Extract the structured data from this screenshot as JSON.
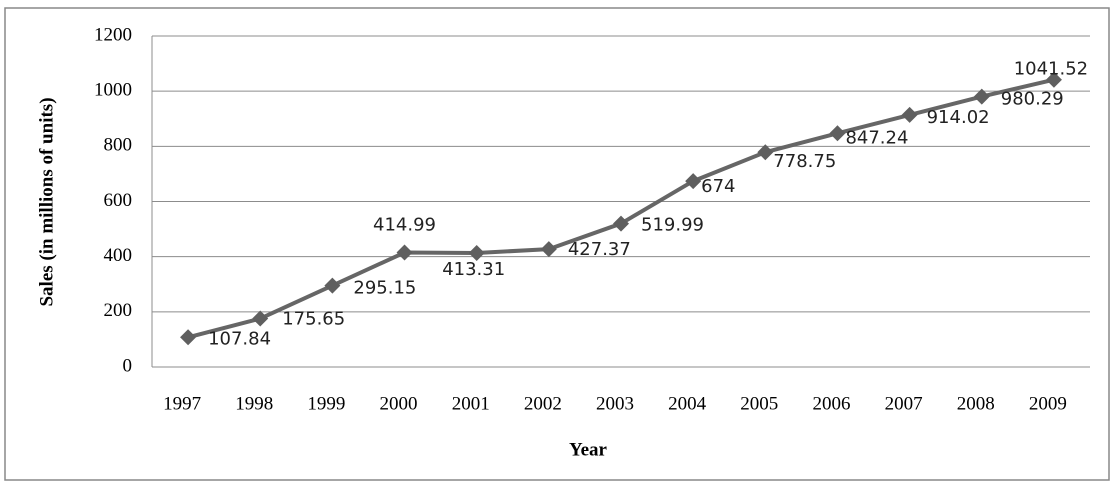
{
  "chart_data": {
    "type": "line",
    "xlabel": "Year",
    "ylabel": "Sales (in millions of units)",
    "categories": [
      "1997",
      "1998",
      "1999",
      "2000",
      "2001",
      "2002",
      "2003",
      "2004",
      "2005",
      "2006",
      "2007",
      "2008",
      "2009"
    ],
    "values": [
      107.84,
      175.65,
      295.15,
      414.99,
      413.31,
      427.37,
      519.99,
      674,
      778.75,
      847.24,
      914.02,
      980.29,
      1041.52
    ],
    "color": "#666666",
    "ylim": [
      0,
      1200
    ],
    "yticks": [
      0,
      200,
      400,
      600,
      800,
      1000,
      1200
    ],
    "grid": true
  }
}
